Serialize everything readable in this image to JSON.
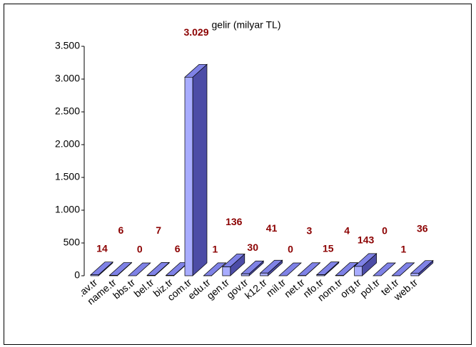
{
  "chart_data": {
    "type": "bar3d",
    "title": "gelir (milyar TL)",
    "categories": [
      ".av.tr",
      "name.tr",
      "bbs.tr",
      "bel.tr",
      "biz.tr",
      "com.tr",
      "edu.tr",
      "gen.tr",
      "gov.tr",
      "k12.tr",
      "mil.tr",
      "net.tr",
      "nfo.tr",
      "nom.tr",
      "org.tr",
      "pol.tr",
      "tel.tr",
      "web.tr"
    ],
    "values": [
      14,
      6,
      0,
      7,
      6,
      3029,
      1,
      136,
      30,
      41,
      0,
      3,
      15,
      4,
      143,
      0,
      1,
      36
    ],
    "value_labels": [
      "14",
      "6",
      "0",
      "7",
      "6",
      "3.029",
      "1",
      "136",
      "30",
      "41",
      "0",
      "3",
      "15",
      "4",
      "143",
      "0",
      "1",
      "36"
    ],
    "color": "#a8acff",
    "ylim": [
      0,
      3500
    ],
    "yticks": [
      0,
      500,
      {
        "value": 1000,
        "label": "1.000"
      },
      {
        "value": 1500,
        "label": "1.500"
      },
      {
        "value": 2000,
        "label": "2.000"
      },
      {
        "value": 2500,
        "label": "2.500"
      },
      {
        "value": 3000,
        "label": "3.000"
      },
      {
        "value": 3500,
        "label": "3.500"
      }
    ],
    "grid": false
  }
}
